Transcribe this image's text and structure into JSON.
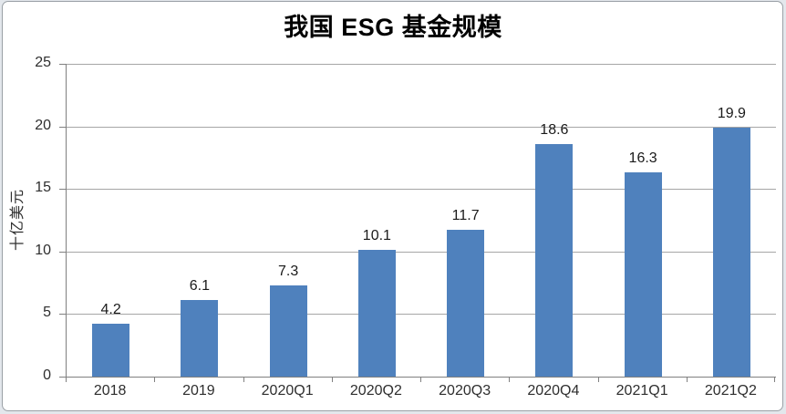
{
  "title": "我国 ESG 基金规模",
  "y_axis_title": "十亿美元",
  "chart_data": {
    "type": "bar",
    "title": "我国 ESG 基金规模",
    "xlabel": "",
    "ylabel": "十亿美元",
    "categories": [
      "2018",
      "2019",
      "2020Q1",
      "2020Q2",
      "2020Q3",
      "2020Q4",
      "2021Q1",
      "2021Q2"
    ],
    "values": [
      4.2,
      6.1,
      7.3,
      10.1,
      11.7,
      18.6,
      16.3,
      19.9
    ],
    "ylim": [
      0,
      25
    ],
    "ytick_step": 5,
    "yticks": [
      0,
      5,
      10,
      15,
      20,
      25
    ],
    "grid": "horizontal",
    "legend": "none",
    "data_labels": true
  },
  "colors": {
    "bar": "#4F81BD",
    "gridline": "#a6a6a6",
    "axis": "#808080",
    "tick_label": "#2e2e2e",
    "data_label": "#1a1a1a",
    "title": "#000000",
    "background": "#ffffff",
    "frame_border": "#9aa0a6",
    "page_background": "#e3e7ec"
  }
}
